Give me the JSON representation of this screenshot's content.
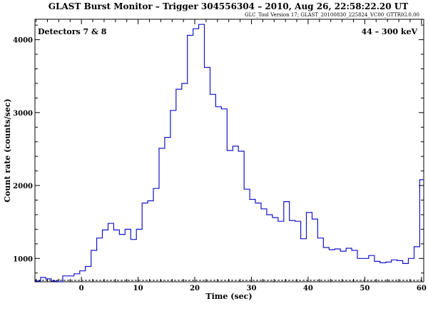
{
  "chart_data": {
    "type": "line",
    "title": "GLAST Burst Monitor  –  Trigger 304556304  –  2010, Aug 26, 22:58:22.20 UT",
    "subtitle": "GLC_Tool Version 17; GLAST_20100830_225824_VC00_GTTRIG.0.00",
    "xlabel": "Time (sec)",
    "ylabel": "Count rate (counts/sec)",
    "annotation_left": "Detectors 7 & 8",
    "annotation_right": "44 – 300 keV",
    "xlim": [
      -8.2,
      60.4
    ],
    "ylim": [
      680,
      4280
    ],
    "x_ticks": [
      0,
      10,
      20,
      30,
      40,
      50,
      60
    ],
    "y_ticks": [
      1000,
      2000,
      3000,
      4000
    ],
    "grid": false,
    "background_level": 700,
    "series": [
      {
        "name": "",
        "style": "step",
        "color": "#1414c8",
        "x": [
          -8.2,
          -7.2,
          -6.3,
          -5.3,
          -4.3,
          -3.3,
          -2.3,
          -1.3,
          -0.3,
          0.7,
          1.7,
          2.7,
          3.7,
          4.7,
          5.7,
          6.7,
          7.7,
          8.7,
          9.7,
          10.7,
          11.7,
          12.7,
          13.7,
          14.7,
          15.7,
          16.7,
          17.7,
          18.7,
          19.7,
          20.7,
          21.7,
          22.7,
          23.7,
          24.7,
          25.7,
          26.7,
          27.7,
          28.7,
          29.7,
          30.7,
          31.7,
          32.7,
          33.7,
          34.7,
          35.7,
          36.7,
          37.7,
          38.7,
          39.7,
          40.7,
          41.7,
          42.7,
          43.7,
          44.7,
          45.7,
          46.7,
          47.7,
          48.7,
          49.7,
          50.7,
          51.7,
          52.7,
          53.7,
          54.7,
          55.7,
          56.7,
          57.7,
          58.7,
          59.7,
          60.4
        ],
        "y": [
          690,
          740,
          720,
          690,
          680,
          760,
          760,
          790,
          830,
          890,
          1110,
          1280,
          1390,
          1480,
          1390,
          1330,
          1400,
          1260,
          1400,
          1760,
          1790,
          1960,
          2510,
          2660,
          3030,
          3320,
          3400,
          4060,
          4150,
          4210,
          3620,
          3250,
          3080,
          3050,
          2480,
          2540,
          2470,
          1950,
          1810,
          1760,
          1680,
          1600,
          1560,
          1510,
          1780,
          1520,
          1510,
          1270,
          1630,
          1540,
          1280,
          1150,
          1120,
          1130,
          1100,
          1140,
          1110,
          1000,
          1000,
          1040,
          960,
          940,
          950,
          980,
          970,
          930,
          1000,
          1160,
          2080,
          2080
        ]
      }
    ]
  }
}
